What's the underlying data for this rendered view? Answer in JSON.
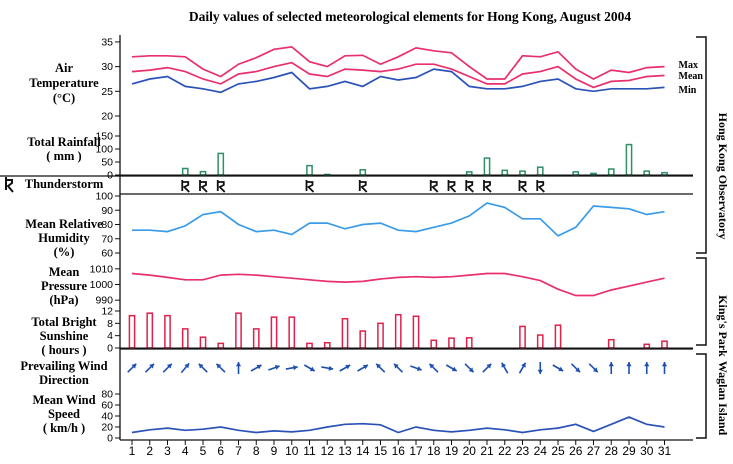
{
  "title": "Daily values of selected meteorological elements for Hong Kong, August 2004",
  "colors": {
    "temp_max": "#e8306a",
    "temp_mean": "#e8306a",
    "temp_min": "#2a52b8",
    "rain": "#2f8f67",
    "humidity": "#3a9be6",
    "pressure": "#e8306a",
    "sunshine": "#e0204a",
    "wind_dir": "#1d4fb0",
    "wind_speed": "#2a52b8",
    "axis": "#111111"
  },
  "station_labels": {
    "hko": "Hong Kong Observatory",
    "kp": "King's Park",
    "wi": "Waglan Island"
  },
  "chart_data": {
    "type": "multi-panel",
    "x_label": "",
    "days": [
      1,
      2,
      3,
      4,
      5,
      6,
      7,
      8,
      9,
      10,
      11,
      12,
      13,
      14,
      15,
      16,
      17,
      18,
      19,
      20,
      21,
      22,
      23,
      24,
      25,
      26,
      27,
      28,
      29,
      30,
      31
    ],
    "panels": [
      {
        "id": "air_temperature",
        "label_lines": [
          "Air",
          "Temperature",
          "(°C)"
        ],
        "type": "line",
        "ylim": [
          20,
          36
        ],
        "yticks": [
          20,
          25,
          30,
          35
        ],
        "series": [
          {
            "name": "Max",
            "color_key": "temp_max",
            "values": [
              32,
              32.2,
              32.2,
              32,
              29.5,
              28,
              30.5,
              31.8,
              33.5,
              34,
              31,
              30,
              32.2,
              32.3,
              30.5,
              32,
              33.8,
              33.2,
              32.8,
              30,
              27.5,
              27.5,
              32.2,
              32,
              33,
              29.5,
              27.5,
              29.3,
              28.8,
              29.8,
              30
            ]
          },
          {
            "name": "Mean",
            "color_key": "temp_mean",
            "values": [
              29,
              29.3,
              29.8,
              29,
              27.5,
              26.5,
              28.5,
              29,
              30,
              30.8,
              28.5,
              28,
              29.5,
              29.3,
              29,
              29.5,
              30.5,
              30.5,
              29.5,
              28,
              26.5,
              26.5,
              28.5,
              29,
              30,
              27.5,
              25.8,
              27,
              27.2,
              28,
              28.2
            ]
          },
          {
            "name": "Min",
            "color_key": "temp_min",
            "values": [
              26.5,
              27.5,
              28,
              26,
              25.5,
              24.8,
              26.5,
              27,
              27.8,
              28.8,
              25.5,
              26,
              27,
              26,
              28,
              27.3,
              27.8,
              29.5,
              29,
              26,
              25.5,
              25.5,
              26,
              27,
              27.5,
              25.5,
              25,
              25.5,
              25.5,
              25.5,
              25.8
            ]
          }
        ]
      },
      {
        "id": "total_rainfall",
        "label_lines": [
          "Total Rainfall",
          "( mm )"
        ],
        "type": "bar",
        "ylim": [
          0,
          150
        ],
        "yticks": [
          0,
          50,
          100,
          150
        ],
        "series": [
          {
            "name": "",
            "color_key": "rain",
            "values": [
              0,
              0,
              0,
              25,
              13,
              83,
              0,
              0,
              0,
              0,
              36,
              2,
              0,
              20,
              0,
              0,
              0,
              0,
              0,
              12,
              65,
              18,
              15,
              30,
              0,
              12,
              6,
              23,
              117,
              15,
              9
            ]
          }
        ]
      },
      {
        "id": "thunderstorm",
        "label_lines": [
          "Thunderstorm"
        ],
        "type": "symbol",
        "days": [
          4,
          5,
          6,
          11,
          14,
          18,
          19,
          20,
          21,
          23,
          24
        ]
      },
      {
        "id": "mean_relative_humidity",
        "label_lines": [
          "Mean Relative",
          "Humidity",
          "(%)"
        ],
        "type": "line",
        "ylim": [
          60,
          100
        ],
        "yticks": [
          60,
          70,
          80,
          90,
          100
        ],
        "series": [
          {
            "name": "",
            "color_key": "humidity",
            "values": [
              76,
              76,
              75,
              79,
              87,
              89,
              80,
              75,
              76,
              73,
              81,
              81,
              77,
              80,
              81,
              76,
              75,
              78,
              81,
              86,
              95,
              92,
              84,
              84,
              72,
              78,
              93,
              92,
              91,
              87,
              89
            ]
          }
        ]
      },
      {
        "id": "mean_pressure",
        "label_lines": [
          "Mean",
          "Pressure",
          "(hPa)"
        ],
        "type": "line",
        "ylim": [
          985,
          1015
        ],
        "yticks": [
          990,
          1000,
          1010
        ],
        "series": [
          {
            "name": "",
            "color_key": "pressure",
            "values": [
              1007,
              1006,
              1004.5,
              1003,
              1003,
              1006,
              1006.5,
              1006,
              1005,
              1004,
              1003,
              1002,
              1001.5,
              1002,
              1003.5,
              1004.5,
              1005,
              1004.5,
              1005,
              1006,
              1007,
              1007,
              1005,
              1002.5,
              997,
              993,
              993,
              996.5,
              999,
              1001.5,
              1004
            ]
          }
        ]
      },
      {
        "id": "total_bright_sunshine",
        "label_lines": [
          "Total Bright",
          "Sunshine",
          "( hours )"
        ],
        "type": "bar",
        "ylim": [
          0,
          12
        ],
        "yticks": [
          0,
          4,
          8,
          12
        ],
        "series": [
          {
            "name": "",
            "color_key": "sunshine",
            "values": [
              10.5,
              11.3,
              10.5,
              6.2,
              3.5,
              1.5,
              11.3,
              6.2,
              10,
              10,
              1.5,
              1.7,
              9.5,
              5.5,
              8,
              10.8,
              10.3,
              2.5,
              3.2,
              3.3,
              0,
              0,
              7,
              4.2,
              7.4,
              0,
              0,
              2.7,
              0,
              1.2,
              2.2
            ]
          }
        ]
      },
      {
        "id": "prevailing_wind_direction",
        "label_lines": [
          "Prevailing Wind",
          "Direction"
        ],
        "type": "arrows",
        "angles_deg_from_north": [
          45,
          45,
          45,
          40,
          315,
          315,
          0,
          60,
          70,
          80,
          120,
          100,
          60,
          60,
          315,
          315,
          110,
          315,
          120,
          135,
          45,
          330,
          30,
          180,
          120,
          135,
          135,
          0,
          0,
          0,
          0
        ]
      },
      {
        "id": "mean_wind_speed",
        "label_lines": [
          "Mean Wind",
          "Speed",
          "( km/h )"
        ],
        "type": "line",
        "ylim": [
          0,
          100
        ],
        "yticks": [
          0,
          20,
          40,
          60,
          80
        ],
        "series": [
          {
            "name": "",
            "color_key": "wind_speed",
            "values": [
              10,
              15,
              18,
              14,
              16,
              20,
              14,
              10,
              13,
              11,
              14,
              20,
              25,
              26,
              24,
              10,
              20,
              14,
              11,
              14,
              18,
              15,
              10,
              15,
              18,
              25,
              12,
              25,
              38,
              25,
              20
            ]
          }
        ]
      }
    ]
  }
}
